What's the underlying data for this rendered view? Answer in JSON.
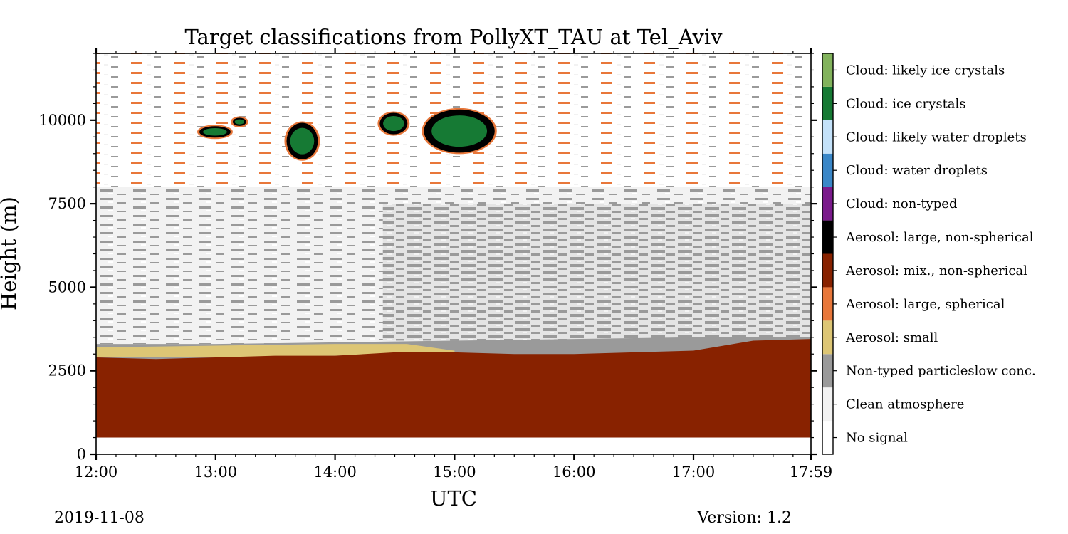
{
  "chart_data": {
    "type": "heatmap",
    "title": "Target classifications from PollyXT_TAU at Tel_Aviv",
    "xlabel": "UTC",
    "ylabel": "Height (m)",
    "x_tick_labels": [
      "12:00",
      "13:00",
      "14:00",
      "15:00",
      "16:00",
      "17:00",
      "17:59"
    ],
    "x_ticks_hours": [
      12,
      13,
      14,
      15,
      16,
      17,
      17.9833
    ],
    "xlim_hours": [
      12,
      17.9833
    ],
    "y_ticks": [
      0,
      2500,
      5000,
      7500,
      10000
    ],
    "ylim": [
      0,
      12000
    ],
    "grid": false,
    "legend": "colorbar-right",
    "colorbar": [
      {
        "label": "No signal",
        "color": "#ffffff"
      },
      {
        "label": "Clean atmosphere",
        "color": "#f2f2f2"
      },
      {
        "label": "Non-typed particleslow conc.",
        "color": "#9a9a9a"
      },
      {
        "label": "Aerosol: small",
        "color": "#ddc675"
      },
      {
        "label": "Aerosol: large, spherical",
        "color": "#e8773a"
      },
      {
        "label": "Aerosol: mix., non-spherical",
        "color": "#882200"
      },
      {
        "label": "Aerosol: large, non-spherical",
        "color": "#000000"
      },
      {
        "label": "Cloud: non-typed",
        "color": "#7b1a8c"
      },
      {
        "label": "Cloud: water droplets",
        "color": "#3a87c8"
      },
      {
        "label": "Cloud: likely water droplets",
        "color": "#c4e2fa"
      },
      {
        "label": "Cloud: ice crystals",
        "color": "#167a34"
      },
      {
        "label": "Cloud: likely ice crystals",
        "color": "#82b35c"
      }
    ],
    "regions": {
      "no_signal_below_m": 500,
      "aerosol_mix_top_m": [
        {
          "t": 12.0,
          "h": 2900
        },
        {
          "t": 12.5,
          "h": 2850
        },
        {
          "t": 13.0,
          "h": 2900
        },
        {
          "t": 13.5,
          "h": 2950
        },
        {
          "t": 14.0,
          "h": 2950
        },
        {
          "t": 14.5,
          "h": 3050
        },
        {
          "t": 15.0,
          "h": 3050
        },
        {
          "t": 15.5,
          "h": 3000
        },
        {
          "t": 16.0,
          "h": 3000
        },
        {
          "t": 16.5,
          "h": 3050
        },
        {
          "t": 17.0,
          "h": 3100
        },
        {
          "t": 17.5,
          "h": 3400
        },
        {
          "t": 17.9833,
          "h": 3450
        }
      ],
      "aerosol_small_layer": [
        {
          "t": 12.0,
          "bottom": 2900,
          "top": 3200
        },
        {
          "t": 13.0,
          "bottom": 2900,
          "top": 3250
        },
        {
          "t": 14.0,
          "bottom": 2950,
          "top": 3300
        },
        {
          "t": 14.6,
          "bottom": 3050,
          "top": 3300
        },
        {
          "t": 15.0,
          "bottom": 3050,
          "top": 3100
        }
      ],
      "non_typed_top_m": [
        {
          "t": 12.0,
          "h": 3300
        },
        {
          "t": 13.0,
          "h": 3300
        },
        {
          "t": 14.0,
          "h": 3350
        },
        {
          "t": 15.0,
          "h": 3400
        },
        {
          "t": 16.0,
          "h": 3450
        },
        {
          "t": 17.0,
          "h": 3500
        },
        {
          "t": 17.9833,
          "h": 3500
        }
      ],
      "clouds": [
        {
          "t_start": 12.87,
          "t_end": 13.12,
          "h_bottom": 9500,
          "h_top": 9800
        },
        {
          "t_start": 13.15,
          "t_end": 13.25,
          "h_bottom": 9850,
          "h_top": 10050
        },
        {
          "t_start": 13.6,
          "t_end": 13.85,
          "h_bottom": 8850,
          "h_top": 9900
        },
        {
          "t_start": 14.38,
          "t_end": 14.6,
          "h_bottom": 9600,
          "h_top": 10200
        },
        {
          "t_start": 14.75,
          "t_end": 15.33,
          "h_bottom": 9050,
          "h_top": 10300
        }
      ]
    }
  },
  "footer": {
    "date": "2019-11-08",
    "version": "Version: 1.2"
  }
}
